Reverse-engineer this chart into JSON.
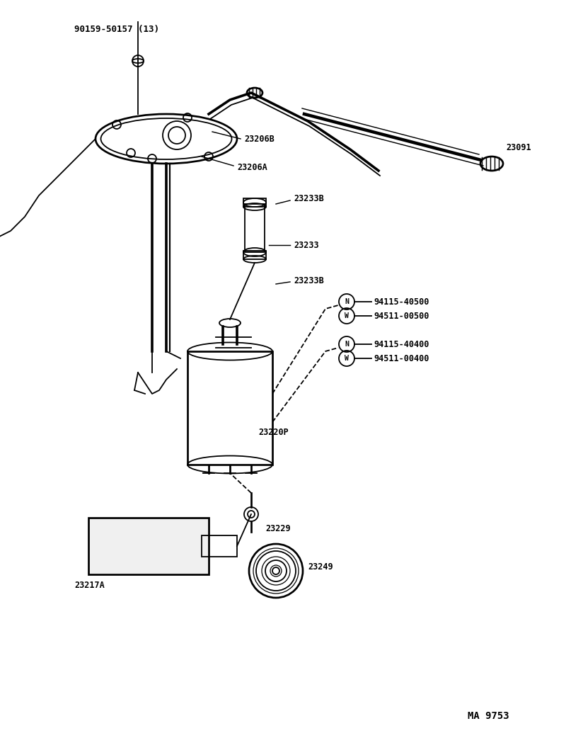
{
  "bg_color": "#ffffff",
  "line_color": "#000000",
  "title_ref": "MA 9753",
  "labels": {
    "bolt_top": "90159-50157 (13)",
    "label_23206B_top": "23206B",
    "label_23206A": "23206A",
    "label_23091": "23091",
    "label_23233B_top": "23233B",
    "label_23233": "23233",
    "label_23233B_bot": "23233B",
    "label_94115_40500": "94115-40500",
    "label_94511_00500": "94511-00500",
    "label_94115_40400": "94115-40400",
    "label_94511_00400": "94511-00400",
    "label_23220P": "23220P",
    "label_23229": "23229",
    "label_23249": "23249",
    "label_23217A": "23217A"
  }
}
